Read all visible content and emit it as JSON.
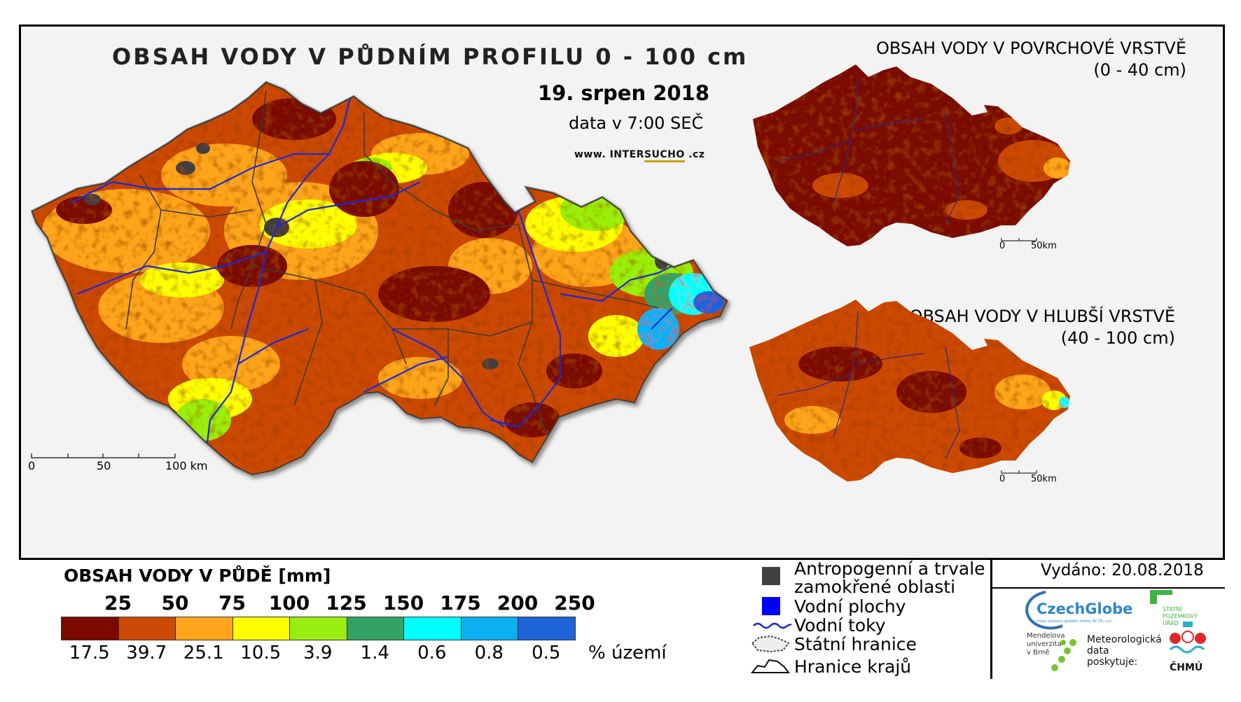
{
  "map": {
    "title": "OBSAH VODY V PŮDNÍM PROFILU 0 - 100 cm",
    "date": "19. srpen 2018",
    "time_note": "data v 7:00 SEČ",
    "website_prefix": "www. INTER",
    "website_highlight": "SUCHO",
    "website_suffix": " .cz",
    "scale": {
      "label_0": "0",
      "label_50": "50",
      "label_100": "100 km"
    }
  },
  "inset_surface": {
    "title_line1": "OBSAH VODY V POVRCHOVÉ VRSTVĚ",
    "title_line2": "(0 - 40 cm)",
    "scale_0": "0",
    "scale_50": "50km"
  },
  "inset_deep": {
    "title_line1": "OBSAH VODY V HLUBŠÍ VRSTVĚ",
    "title_line2": "(40 - 100 cm)",
    "scale_0": "0",
    "scale_50": "50km"
  },
  "legend": {
    "title": "OBSAH VODY V PŮDĚ [mm]",
    "unit_label": "% území",
    "thresholds": [
      "25",
      "50",
      "75",
      "100",
      "125",
      "150",
      "175",
      "200",
      "250"
    ],
    "classes": [
      {
        "color": "#7a0a00",
        "percent": "17.5"
      },
      {
        "color": "#cc4a06",
        "percent": "39.7"
      },
      {
        "color": "#ffa51c",
        "percent": "25.1"
      },
      {
        "color": "#ffff00",
        "percent": "10.5"
      },
      {
        "color": "#99ee11",
        "percent": "3.9"
      },
      {
        "color": "#33a265",
        "percent": "1.4"
      },
      {
        "color": "#00ffff",
        "percent": "0.6"
      },
      {
        "color": "#0bb0f2",
        "percent": "0.8"
      },
      {
        "color": "#1f64d8",
        "percent": "0.5"
      }
    ]
  },
  "symbols": {
    "anthropogenic_line1": "Antropogenní a trvale",
    "anthropogenic_line2": "zamokřené oblasti",
    "water_bodies": "Vodní plochy",
    "streams": "Vodní toky",
    "state_border": "Státní hranice",
    "region_border": "Hranice krajů",
    "colors": {
      "anthropogenic": "#404040",
      "water": "#0000ff",
      "stream": "#1a2ad8"
    }
  },
  "footer": {
    "issued": "Vydáno: 20.08.2018",
    "czechglobe": "CzechGlobe",
    "czechglobe_sub": "Ústav výzkumu globální změny AV ČR, v.v.i.",
    "spu_line1": "STÁTNÍ",
    "spu_line2": "POZEMKOVÝ",
    "spu_line3": "ÚŘAD",
    "mendel_line1": "Mendelova",
    "mendel_line2": "univerzita",
    "mendel_line3": "v Brně",
    "meteo_line1": "Meteorologická",
    "meteo_line2": "data",
    "meteo_line3": "poskytuje:",
    "chmu": "ČHMÚ"
  }
}
